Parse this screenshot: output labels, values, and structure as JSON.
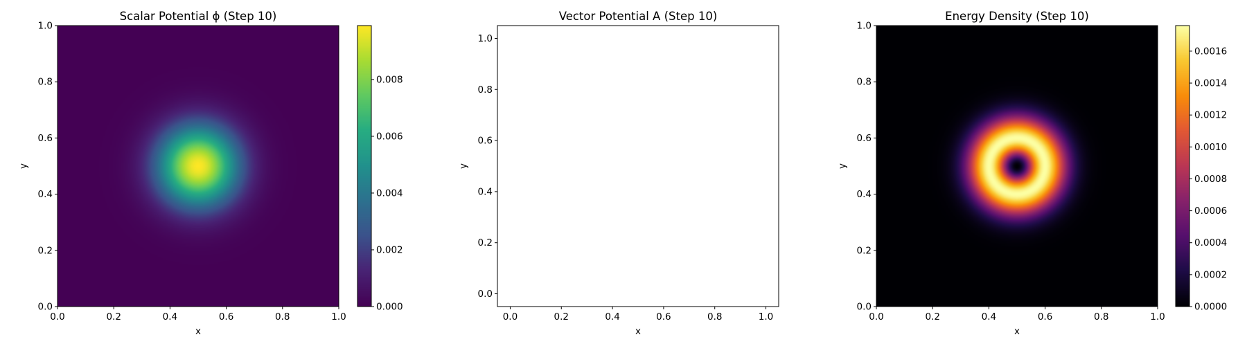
{
  "chart_data": [
    {
      "type": "heatmap",
      "title": "Scalar Potential ϕ (Step 10)",
      "xlabel": "x",
      "ylabel": "y",
      "xlim": [
        0.0,
        1.0
      ],
      "ylim": [
        0.0,
        1.0
      ],
      "xticks": [
        "0.0",
        "0.2",
        "0.4",
        "0.6",
        "0.8",
        "1.0"
      ],
      "yticks": [
        "0.0",
        "0.2",
        "0.4",
        "0.6",
        "0.8",
        "1.0"
      ],
      "colormap": "viridis",
      "field": {
        "shape": "gaussian",
        "center": [
          0.5,
          0.5
        ],
        "sigma": 0.1,
        "peak": 0.0099,
        "min": 0.0
      },
      "colorbar": {
        "range": [
          0.0,
          0.0099
        ],
        "ticks": [
          0.0,
          0.002,
          0.004,
          0.006,
          0.008
        ],
        "tick_labels": [
          "0.000",
          "0.002",
          "0.004",
          "0.006",
          "0.008"
        ]
      }
    },
    {
      "type": "scatter",
      "title": "Vector Potential A (Step 10)",
      "xlabel": "x",
      "ylabel": "y",
      "xlim": [
        -0.05,
        1.05
      ],
      "ylim": [
        -0.05,
        1.05
      ],
      "xticks": [
        "0.0",
        "0.2",
        "0.4",
        "0.6",
        "0.8",
        "1.0"
      ],
      "yticks": [
        "0.0",
        "0.2",
        "0.4",
        "0.6",
        "0.8",
        "1.0"
      ],
      "points": []
    },
    {
      "type": "heatmap",
      "title": "Energy Density (Step 10)",
      "xlabel": "x",
      "ylabel": "y",
      "xlim": [
        0.0,
        1.0
      ],
      "ylim": [
        0.0,
        1.0
      ],
      "xticks": [
        "0.0",
        "0.2",
        "0.4",
        "0.6",
        "0.8",
        "1.0"
      ],
      "yticks": [
        "0.0",
        "0.2",
        "0.4",
        "0.6",
        "0.8",
        "1.0"
      ],
      "colormap": "inferno",
      "field": {
        "shape": "ring",
        "center": [
          0.5,
          0.5
        ],
        "ring_radius": 0.1,
        "peak": 0.00176,
        "min": 0.0
      },
      "colorbar": {
        "range": [
          0.0,
          0.00176
        ],
        "ticks": [
          0.0,
          0.0002,
          0.0004,
          0.0006,
          0.0008,
          0.001,
          0.0012,
          0.0014,
          0.0016
        ],
        "tick_labels": [
          "0.0000",
          "0.0002",
          "0.0004",
          "0.0006",
          "0.0008",
          "0.0010",
          "0.0012",
          "0.0014",
          "0.0016"
        ]
      }
    }
  ]
}
